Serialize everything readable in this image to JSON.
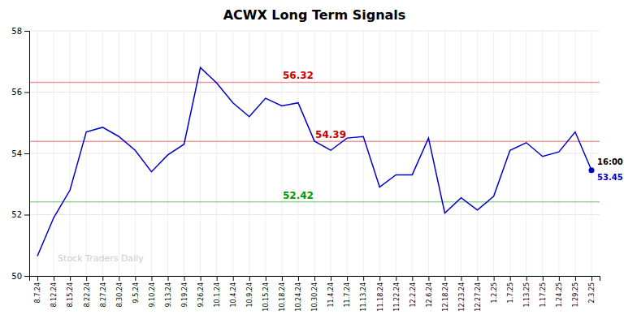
{
  "chart_data": {
    "type": "line",
    "title": "ACWX Long Term Signals",
    "categories": [
      "8.7.24",
      "8.12.24",
      "8.15.24",
      "8.22.24",
      "8.27.24",
      "8.30.24",
      "9.5.24",
      "9.10.24",
      "9.13.24",
      "9.19.24",
      "9.26.24",
      "10.1.24",
      "10.4.24",
      "10.9.24",
      "10.15.24",
      "10.18.24",
      "10.24.24",
      "10.30.24",
      "11.4.24",
      "11.7.24",
      "11.13.24",
      "11.18.24",
      "11.22.24",
      "12.2.24",
      "12.6.24",
      "12.18.24",
      "12.23.24",
      "12.27.24",
      "1.2.25",
      "1.7.25",
      "1.13.25",
      "1.17.25",
      "1.24.25",
      "1.29.25",
      "2.3.25"
    ],
    "values": [
      50.65,
      51.9,
      52.8,
      54.7,
      54.85,
      54.55,
      54.1,
      53.4,
      53.95,
      54.3,
      56.8,
      56.3,
      55.65,
      55.2,
      55.8,
      55.55,
      55.65,
      54.4,
      54.1,
      54.5,
      54.55,
      52.9,
      53.3,
      53.3,
      54.5,
      52.05,
      52.55,
      52.15,
      52.6,
      54.1,
      54.35,
      53.9,
      54.05,
      54.7,
      53.45
    ],
    "color": "#0000cc",
    "ylim": [
      50,
      58
    ],
    "yticks": [
      50,
      52,
      54,
      56,
      58
    ],
    "grid": true,
    "reference_lines": [
      {
        "value": 56.32,
        "color": "#cc0000"
      },
      {
        "value": 54.39,
        "color": "#cc0000"
      },
      {
        "value": 52.42,
        "color": "#009900"
      }
    ],
    "end_label": "16:00",
    "watermark": "Stock Traders Daily"
  }
}
